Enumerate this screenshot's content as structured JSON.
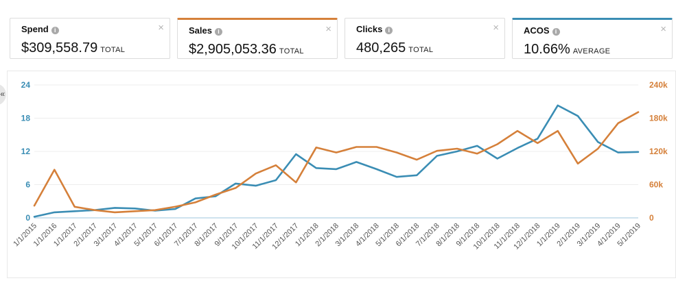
{
  "cards": [
    {
      "label": "Spend",
      "value": "$309,558.79",
      "unit": "TOTAL",
      "selected": null
    },
    {
      "label": "Sales",
      "value": "$2,905,053.36",
      "unit": "TOTAL",
      "selected": "orange"
    },
    {
      "label": "Clicks",
      "value": "480,265",
      "unit": "TOTAL",
      "selected": null
    },
    {
      "label": "ACOS",
      "value": "10.66%",
      "unit": "AVERAGE",
      "selected": "blue"
    }
  ],
  "icons": {
    "info": "info-icon",
    "close": "close-icon",
    "collapse": "collapse-arrow-icon"
  },
  "glyphs": {
    "info": "i",
    "close": "×",
    "collapse": "«"
  },
  "colors": {
    "acos": "#3a8db4",
    "sales": "#d5803a"
  },
  "chart_data": {
    "type": "line",
    "x": [
      "1/1/2015",
      "1/1/2016",
      "1/1/2017",
      "2/1/2017",
      "3/1/2017",
      "4/1/2017",
      "5/1/2017",
      "6/1/2017",
      "7/1/2017",
      "8/1/2017",
      "9/1/2017",
      "10/1/2017",
      "11/1/2017",
      "12/1/2017",
      "1/1/2018",
      "2/1/2018",
      "3/1/2018",
      "4/1/2018",
      "5/1/2018",
      "6/1/2018",
      "7/1/2018",
      "8/1/2018",
      "9/1/2018",
      "10/1/2018",
      "11/1/2018",
      "12/1/2018",
      "1/1/2019",
      "2/1/2019",
      "3/1/2019",
      "4/1/2019",
      "5/1/2019"
    ],
    "series": [
      {
        "axis": "left",
        "color": "#3a8db4",
        "values": [
          0.2,
          1.0,
          1.2,
          1.4,
          1.8,
          1.7,
          1.3,
          1.6,
          3.5,
          3.9,
          6.2,
          5.8,
          6.8,
          11.5,
          9.0,
          8.8,
          10.1,
          8.8,
          7.4,
          7.7,
          11.2,
          12.0,
          13.0,
          10.7,
          12.6,
          14.3,
          20.3,
          18.4,
          13.7,
          11.8,
          11.9
        ]
      },
      {
        "axis": "right",
        "color": "#d5803a",
        "values": [
          22000,
          87000,
          20000,
          14000,
          10000,
          12000,
          14000,
          20000,
          28000,
          42000,
          54000,
          80000,
          95000,
          64000,
          127000,
          118000,
          128000,
          128000,
          118000,
          105000,
          121000,
          125000,
          116000,
          133000,
          157000,
          135000,
          157000,
          98000,
          125000,
          171000,
          191000
        ]
      }
    ],
    "y_left": {
      "ticks": [
        "0",
        "6",
        "12",
        "18",
        "24"
      ],
      "range": [
        0,
        24
      ]
    },
    "y_right": {
      "ticks": [
        "0",
        "60k",
        "120k",
        "180k",
        "240k"
      ],
      "range": [
        0,
        240000
      ]
    },
    "grid": true,
    "legend": "none"
  }
}
